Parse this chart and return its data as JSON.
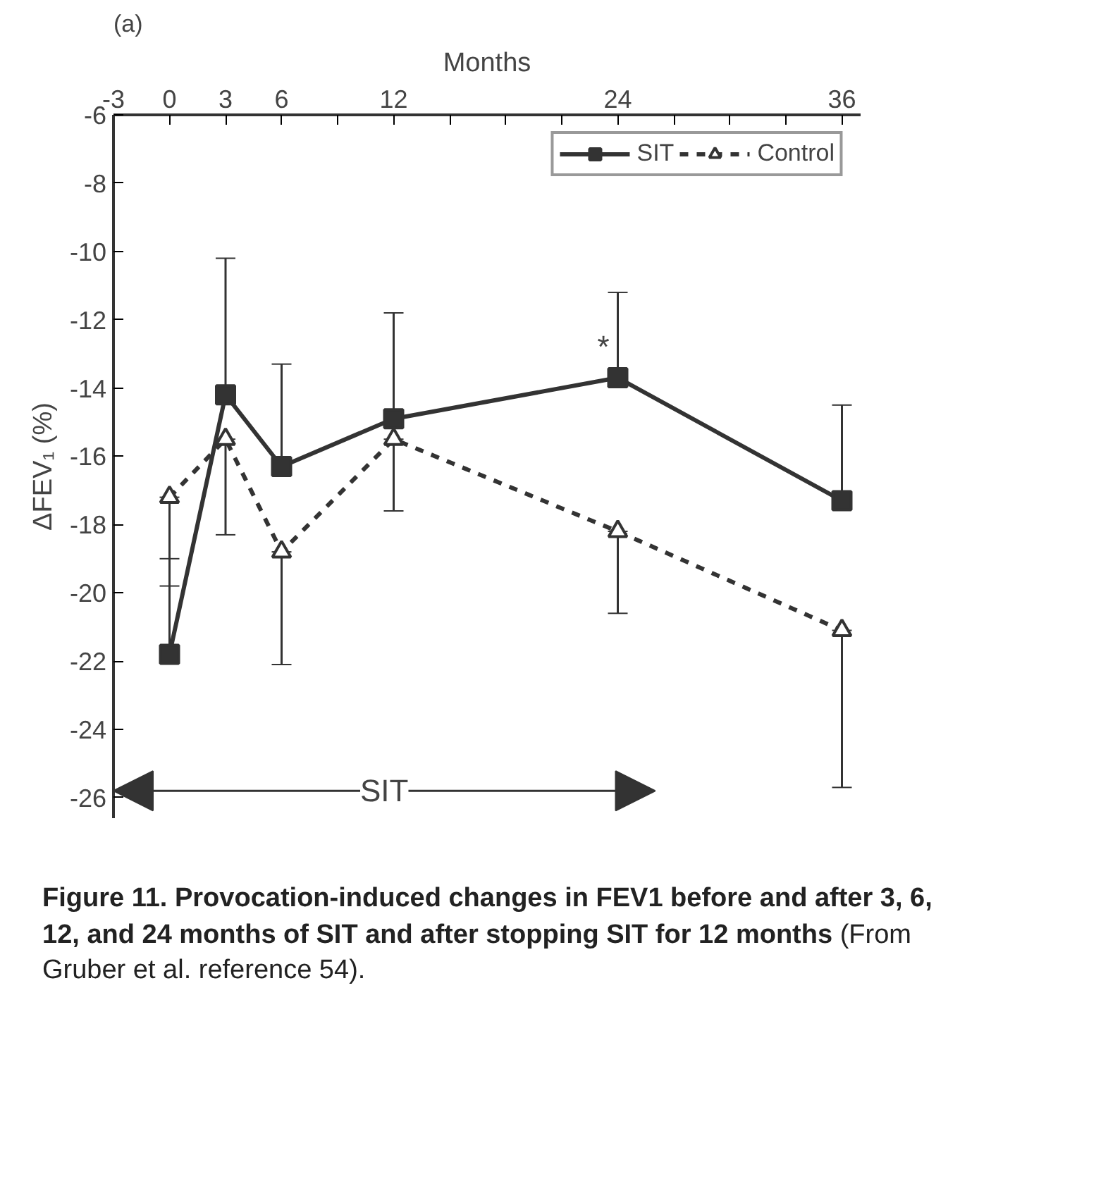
{
  "chart_data": {
    "type": "line",
    "title": "(a)",
    "xlabel": "Months",
    "ylabel": "ΔFEV₁ (%)",
    "x": [
      0,
      3,
      6,
      12,
      24,
      36
    ],
    "series": [
      {
        "name": "SIT",
        "color": "#333333",
        "marker": "square",
        "line_style": "solid",
        "values": [
          -21.8,
          -14.2,
          -16.3,
          -14.9,
          -13.7,
          -17.3
        ],
        "errors": [
          [
            -21.8,
            -19.0
          ],
          [
            -14.2,
            -10.2
          ],
          [
            -16.3,
            -13.3
          ],
          [
            -14.9,
            -11.8
          ],
          [
            -13.7,
            -11.2
          ],
          [
            -17.3,
            -14.5
          ]
        ]
      },
      {
        "name": "Control",
        "color": "#333333",
        "marker": "triangle",
        "line_style": "dashed",
        "values": [
          -17.2,
          -15.5,
          -18.8,
          -15.5,
          -18.2,
          -21.1
        ],
        "errors": [
          [
            -19.8,
            -17.2
          ],
          [
            -18.3,
            -15.5
          ],
          [
            -22.1,
            -18.8
          ],
          [
            -17.6,
            -15.5
          ],
          [
            -20.6,
            -18.2
          ],
          [
            -25.7,
            -21.1
          ]
        ]
      }
    ],
    "xlim": [
      -3,
      37
    ],
    "ylim": [
      -26.6,
      -6
    ],
    "xticks": [
      -3,
      0,
      3,
      6,
      {
        "value": 9,
        "label": null
      },
      12,
      {
        "value": 15,
        "label": null
      },
      {
        "value": 18,
        "label": null
      },
      {
        "value": 21,
        "label": null
      },
      24,
      {
        "value": 27,
        "label": null
      },
      {
        "value": 30,
        "label": null
      },
      {
        "value": 33,
        "label": null
      },
      36
    ],
    "yticks": [
      -6,
      -8,
      -10,
      -12,
      -14,
      -16,
      -18,
      -20,
      -22,
      -24,
      -26
    ],
    "annotations": [
      {
        "text": "*",
        "x": 24,
        "y": -12.8
      },
      {
        "text": "SIT",
        "x": 11.5,
        "y": -25.8
      },
      "Figure 11.  Provocation-induced changes in FEV1 before and after 3, 6, 12, and 24 months of SIT and after stopping SIT for 12 months",
      "(From Gruber et al. reference 54)."
    ],
    "legend": "top right",
    "grid": false
  }
}
